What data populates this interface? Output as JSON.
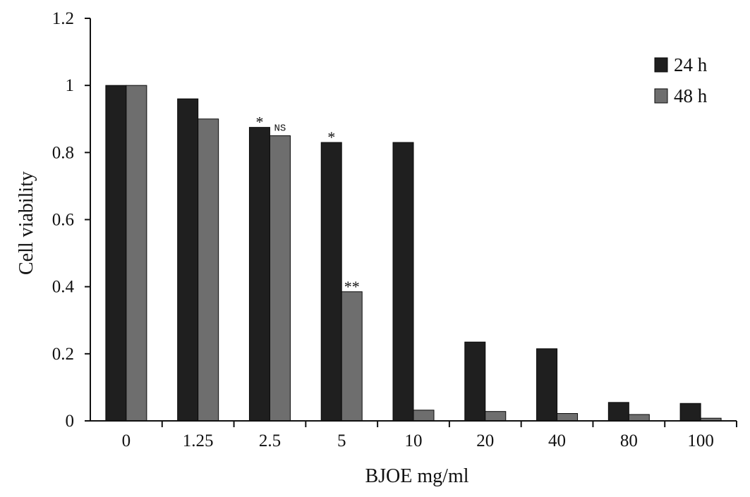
{
  "chart_data": {
    "type": "bar",
    "xlabel": "BJOE mg/ml",
    "ylabel": "Cell viability",
    "ylim": [
      0,
      1.2
    ],
    "yticks": [
      "0",
      "0.2",
      "0.4",
      "0.6",
      "0.8",
      "1",
      "1.2"
    ],
    "categories": [
      "0",
      "1.25",
      "2.5",
      "5",
      "10",
      "20",
      "40",
      "80",
      "100"
    ],
    "series": [
      {
        "name": "24 h",
        "color": "#1f1f1f",
        "values": [
          1.0,
          0.96,
          0.875,
          0.83,
          0.83,
          0.235,
          0.215,
          0.055,
          0.052
        ]
      },
      {
        "name": "48 h",
        "color": "#6e6e6e",
        "values": [
          1.0,
          0.9,
          0.85,
          0.385,
          0.032,
          0.028,
          0.022,
          0.019,
          0.008
        ]
      }
    ],
    "grid": false,
    "legend_position": "top-right",
    "annotations": [
      {
        "category": "2.5",
        "series": "24 h",
        "text": "*"
      },
      {
        "category": "2.5",
        "series": "48 h",
        "text": "NS"
      },
      {
        "category": "5",
        "series": "24 h",
        "text": "*"
      },
      {
        "category": "5",
        "series": "48 h",
        "text": "**"
      }
    ]
  }
}
